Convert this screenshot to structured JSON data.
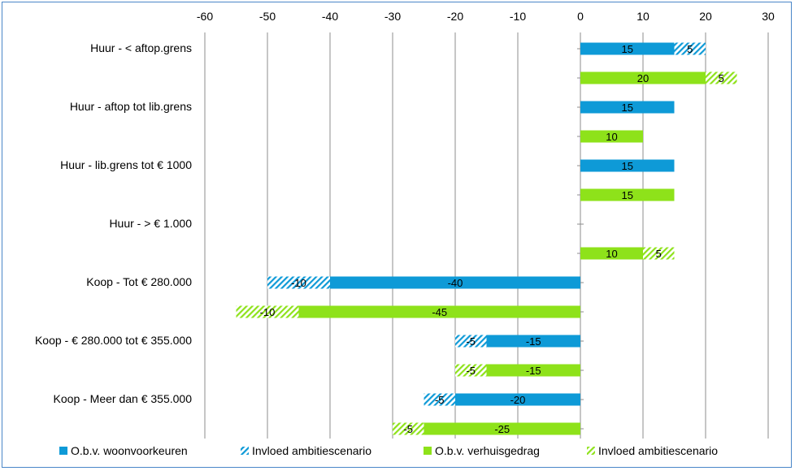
{
  "chart_data": {
    "type": "bar",
    "orientation": "horizontal",
    "stacked": true,
    "xlim": [
      -60,
      30
    ],
    "xticks": [
      -60,
      -50,
      -40,
      -30,
      -20,
      -10,
      0,
      10,
      20,
      30
    ],
    "xtick_labels": [
      "-60",
      "-50",
      "-40",
      "-30",
      "-20",
      "-10",
      "0",
      "10",
      "20",
      "30"
    ],
    "axis_position": "top",
    "grid": true,
    "legend_position": "bottom",
    "categories": [
      "Huur - < aftop.grens",
      "Huur - aftop tot lib.grens",
      "Huur - lib.grens tot € 1000",
      "Huur - > € 1.000",
      "Koop - Tot € 280.000",
      "Koop - € 280.000 tot € 355.000",
      "Koop - Meer dan € 355.000"
    ],
    "series": [
      {
        "name": "O.b.v. woonvoorkeuren",
        "group": "woonvoorkeuren",
        "pattern": "solid",
        "color": "#0e9ad7",
        "values": [
          15,
          15,
          15,
          null,
          -40,
          -15,
          -20
        ]
      },
      {
        "name": "Invloed ambitiescenario",
        "group": "woonvoorkeuren",
        "pattern": "hatched",
        "color": "#0e9ad7",
        "values": [
          5,
          null,
          null,
          null,
          -10,
          -5,
          -5
        ]
      },
      {
        "name": "O.b.v. verhuisgedrag",
        "group": "verhuisgedrag",
        "pattern": "solid",
        "color": "#8ee21a",
        "values": [
          20,
          10,
          15,
          10,
          -45,
          -15,
          -25
        ]
      },
      {
        "name": "Invloed ambitiescenario",
        "group": "verhuisgedrag",
        "pattern": "hatched",
        "color": "#8ee21a",
        "values": [
          5,
          null,
          null,
          5,
          -10,
          -5,
          -5
        ]
      }
    ]
  }
}
